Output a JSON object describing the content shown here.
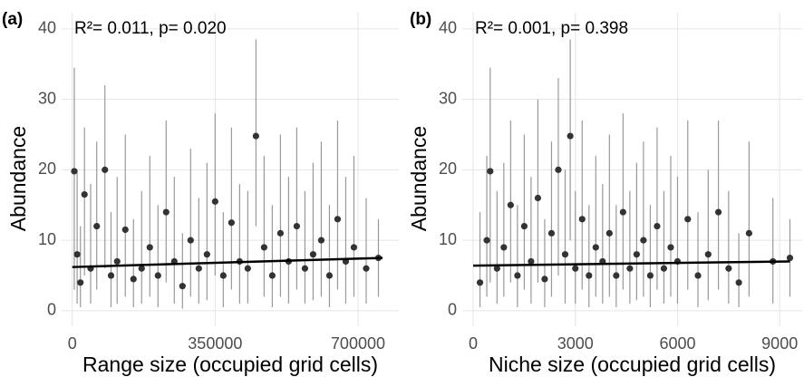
{
  "chart_data": [
    {
      "type": "scatter",
      "panel_label": "(a)",
      "annotation": "R²= 0.011, p= 0.020",
      "x_label": "Range size (occupied grid cells)",
      "y_label": "Abundance",
      "xlim": [
        -26000,
        800000
      ],
      "ylim": [
        -2.2,
        42.3
      ],
      "xticks": [
        0,
        350000,
        700000
      ],
      "yticks": [
        0,
        10,
        20,
        30,
        40
      ],
      "grid": true,
      "color": "#333333",
      "error_color": "#999999",
      "x": [
        5000,
        12000,
        20000,
        30000,
        45000,
        60000,
        80000,
        95000,
        110000,
        130000,
        150000,
        170000,
        190000,
        210000,
        230000,
        250000,
        270000,
        290000,
        310000,
        330000,
        350000,
        370000,
        390000,
        410000,
        430000,
        450000,
        470000,
        490000,
        510000,
        530000,
        550000,
        570000,
        590000,
        610000,
        630000,
        650000,
        670000,
        690000,
        720000,
        750000
      ],
      "values": [
        19.8,
        8,
        4,
        16.5,
        6,
        12,
        20,
        5,
        7,
        11.5,
        4.5,
        6,
        9,
        5,
        14,
        7,
        3.5,
        10,
        6,
        8,
        15.5,
        5,
        12.5,
        7,
        6,
        24.8,
        9,
        5,
        11,
        7,
        12,
        6,
        8,
        10,
        5,
        13,
        7,
        9,
        6,
        7.5
      ],
      "lower": [
        3,
        1,
        0.5,
        5,
        1,
        3,
        6,
        0.5,
        1,
        2,
        0.5,
        1,
        2,
        0.5,
        4,
        1,
        0.3,
        2,
        1,
        1.5,
        5,
        0.5,
        3,
        1,
        1,
        12,
        2,
        0.5,
        2,
        1,
        3,
        1,
        1.5,
        2,
        0.5,
        3,
        1,
        2,
        1,
        2
      ],
      "upper": [
        34.5,
        20,
        12,
        26,
        18,
        24,
        32,
        14,
        19,
        25,
        13,
        17,
        22,
        15,
        27,
        19,
        11,
        23,
        16,
        21,
        28,
        14,
        26,
        18,
        17,
        38.5,
        22,
        15,
        25,
        19,
        26,
        17,
        21,
        24,
        15,
        27,
        19,
        22,
        16,
        13
      ],
      "fit": {
        "x": [
          0,
          760000
        ],
        "y": [
          6.2,
          7.5
        ],
        "color": "#000000"
      }
    },
    {
      "type": "scatter",
      "panel_label": "(b)",
      "annotation": "R²= 0.001, p= 0.398",
      "x_label": "Niche size (occupied grid cells)",
      "y_label": "Abundance",
      "xlim": [
        -320,
        9660
      ],
      "ylim": [
        -2.2,
        42.3
      ],
      "xticks": [
        0,
        3000,
        6000,
        9000
      ],
      "yticks": [
        0,
        10,
        20,
        30,
        40
      ],
      "grid": true,
      "color": "#333333",
      "error_color": "#999999",
      "x": [
        200,
        400,
        500,
        700,
        900,
        1100,
        1300,
        1500,
        1700,
        1900,
        2100,
        2300,
        2500,
        2700,
        2850,
        3000,
        3200,
        3400,
        3600,
        3800,
        4000,
        4200,
        4400,
        4600,
        4800,
        5000,
        5200,
        5400,
        5600,
        5800,
        6000,
        6300,
        6600,
        6900,
        7200,
        7500,
        7800,
        8100,
        8800,
        9300
      ],
      "values": [
        4,
        10,
        19.8,
        6,
        9,
        15,
        5,
        12,
        7,
        16,
        4.5,
        11,
        20,
        8,
        24.8,
        6,
        13,
        5,
        9,
        7,
        11,
        5,
        14,
        6,
        8,
        10,
        5,
        12,
        6,
        9,
        7,
        13,
        5,
        8,
        14,
        6,
        4,
        11,
        7,
        7.5
      ],
      "lower": [
        0.5,
        2,
        4,
        1,
        2,
        4,
        0.5,
        3,
        1,
        4,
        0.5,
        2,
        5,
        1,
        10,
        1,
        3,
        0.5,
        2,
        1,
        2,
        0.5,
        3,
        1,
        1.5,
        2,
        0.5,
        3,
        1,
        2,
        1,
        3,
        0.5,
        1.5,
        3,
        1,
        0.5,
        2,
        1,
        2
      ],
      "upper": [
        14,
        22,
        34.5,
        17,
        21,
        27,
        15,
        25,
        19,
        30,
        13,
        24,
        33,
        20,
        38.5,
        17,
        27,
        15,
        22,
        18,
        25,
        15,
        28,
        17,
        21,
        24,
        15,
        26,
        17,
        22,
        19,
        27,
        14,
        20,
        27,
        17,
        11,
        24,
        16,
        13
      ],
      "fit": {
        "x": [
          0,
          9300
        ],
        "y": [
          6.4,
          7.0
        ],
        "color": "#000000"
      }
    }
  ]
}
